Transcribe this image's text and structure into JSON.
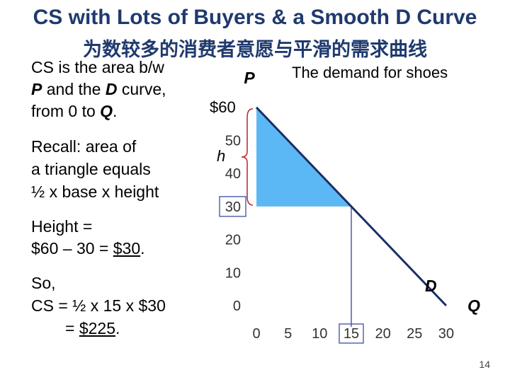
{
  "slide": {
    "title_en": "CS with Lots of Buyers & a Smooth D Curve",
    "title_cn": "为数较多的消费者意愿与平滑的需求曲线",
    "page_number": "14"
  },
  "left_text": {
    "line1": "CS is the area b/w",
    "line2_p": "P",
    "line2_mid": " and the ",
    "line2_d": "D",
    "line2_end": " curve,",
    "line3_start": "from 0 to ",
    "line3_q": "Q",
    "line3_end": ".",
    "recall1": "Recall:  area of",
    "recall2": "a triangle equals",
    "recall3": "½ x base x height",
    "height1": "Height =",
    "height2_start": "$60 – 30 = ",
    "height2_val": "$30",
    "height2_end": ".",
    "so1": "So,",
    "so2": "CS = ½ x 15 x $30",
    "so3_start": "= ",
    "so3_val": "$225",
    "so3_end": "."
  },
  "chart_labels": {
    "p_axis": "P",
    "heading": "The demand for shoes",
    "price_60": "$60",
    "h_label": "h",
    "d_label": "D",
    "q_axis": "Q"
  },
  "colors": {
    "title": "#1f3a6e",
    "demand_line": "#1a2f66",
    "cs_area": "#5cb8f5",
    "ref_line": "#4a5aa8",
    "h_color": "#c0302f"
  },
  "chart_data": {
    "type": "line",
    "series": [
      {
        "x": [
          0,
          30
        ],
        "y": [
          60,
          0
        ]
      }
    ],
    "shaded_area": {
      "price": 30,
      "quantity": 15,
      "max_price": 60
    },
    "x_ticks": [
      "0",
      "5",
      "10",
      "15",
      "20",
      "25",
      "30"
    ],
    "y_ticks": [
      "0",
      "10",
      "20",
      "30",
      "40",
      "50"
    ],
    "highlighted_x": "15",
    "highlighted_y": "30",
    "xlim": [
      0,
      30
    ],
    "ylim": [
      0,
      60
    ]
  }
}
